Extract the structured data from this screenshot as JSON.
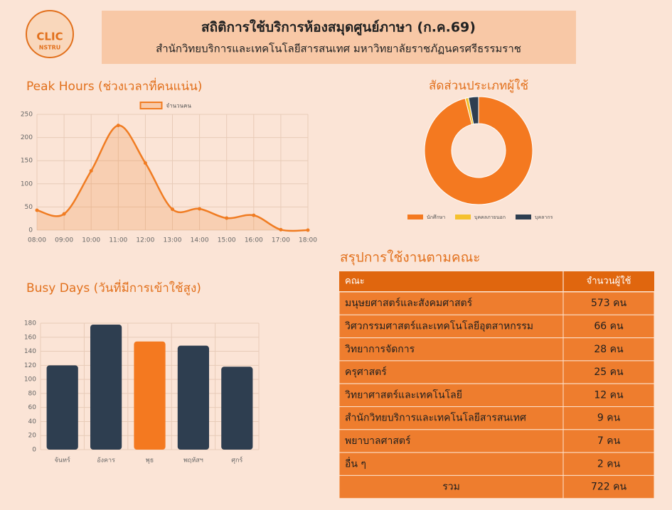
{
  "logo": {
    "text": [
      "CLIC",
      "NSTRU"
    ]
  },
  "header": {
    "title": "สถิติการใช้บริการห้องสมุดศูนย์ภาษา (ก.ค.69)",
    "subtitle": "สำนักวิทยบริการและเทคโนโลยีสารสนเทศ มหาวิทยาลัยราชภัฏนครศรีธรรมราช"
  },
  "chart_data": [
    {
      "type": "line",
      "title": "Peak Hours (ช่วงเวลาที่คนแน่น)",
      "categories": [
        "08:00",
        "09:00",
        "10:00",
        "11:00",
        "12:00",
        "13:00",
        "14:00",
        "15:00",
        "16:00",
        "17:00",
        "18:00"
      ],
      "series": [
        {
          "name": "จำนวนคน",
          "color": "#f07c22",
          "values": [
            43,
            35,
            128,
            226,
            145,
            45,
            46,
            26,
            32,
            1,
            0
          ]
        }
      ],
      "ylim": [
        0,
        250
      ],
      "yticks": [
        0,
        50,
        100,
        150,
        200,
        250
      ],
      "grid": true
    },
    {
      "type": "donut",
      "title": "สัดส่วนประเภทผู้ใช้",
      "categories": [
        "นักศึกษา",
        "บุคคลภายนอก",
        "บุคลากร"
      ],
      "values": [
        96,
        1,
        3
      ],
      "colors": [
        "#f47920",
        "#f5c12e",
        "#2e3e50"
      ]
    },
    {
      "type": "bar",
      "title": "Busy Days (วันที่มีการเข้าใช้สูง)",
      "categories": [
        "จันทร์",
        "อังคาร",
        "พุธ",
        "พฤหัสฯ",
        "ศุกร์"
      ],
      "values": [
        120,
        178,
        154,
        148,
        118
      ],
      "colors": [
        "#2e3e50",
        "#2e3e50",
        "#f47920",
        "#2e3e50",
        "#2e3e50"
      ],
      "ylim": [
        0,
        180
      ],
      "yticks": [
        0,
        20,
        40,
        60,
        80,
        100,
        120,
        140,
        160,
        180
      ],
      "grid": true
    }
  ],
  "table": {
    "title": "สรุปการใช้งานตามคณะ",
    "header": [
      "คณะ",
      "จำนวนผู้ใช้"
    ],
    "rows": [
      [
        "มนุษยศาสตร์และสังคมศาสตร์",
        "573 คน"
      ],
      [
        "วิศวกรรมศาสตร์และเทคโนโลยีอุตสาหกรรม",
        "66 คน"
      ],
      [
        "วิทยาการจัดการ",
        "28 คน"
      ],
      [
        "ครุศาสตร์",
        "25 คน"
      ],
      [
        "วิทยาศาสตร์และเทคโนโลยี",
        "12 คน"
      ],
      [
        "สำนักวิทยบริการและเทคโนโลยีสารสนเทศ",
        "9 คน"
      ],
      [
        "พยาบาลศาสตร์",
        "7 คน"
      ],
      [
        "อื่น ๆ",
        "2 คน"
      ],
      [
        "รวม",
        "722 คน"
      ]
    ]
  }
}
